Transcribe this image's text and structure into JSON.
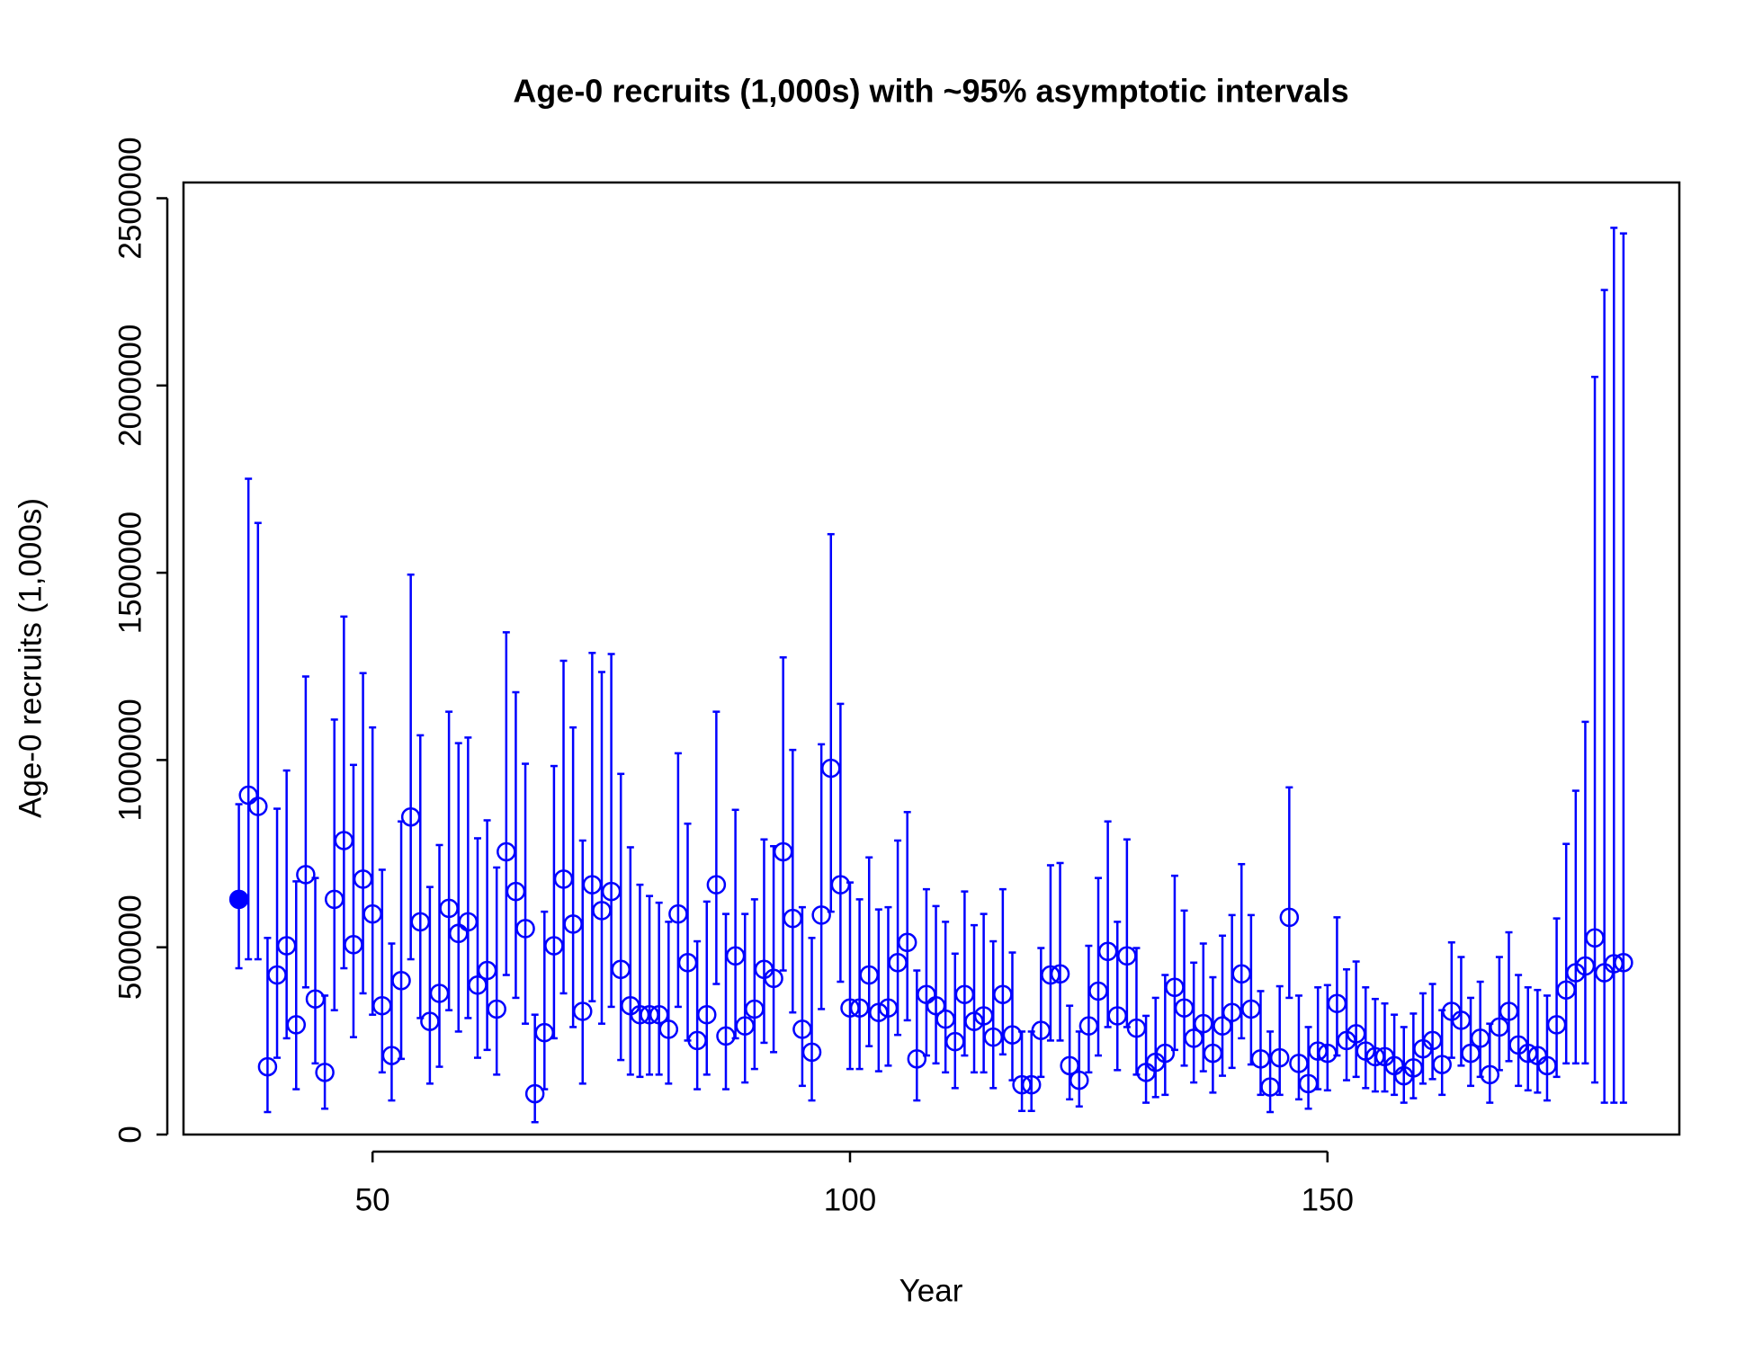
{
  "chart_data": {
    "type": "errorbar",
    "title": "Age-0 recruits (1,000s) with ~95% asymptotic intervals",
    "x_label": "Year",
    "y_label": "Age-0 recruits (1,000s)",
    "x": [
      36,
      37,
      38,
      39,
      40,
      41,
      42,
      43,
      44,
      45,
      46,
      47,
      48,
      49,
      50,
      51,
      52,
      53,
      54,
      55,
      56,
      57,
      58,
      59,
      60,
      61,
      62,
      63,
      64,
      65,
      66,
      67,
      68,
      69,
      70,
      71,
      72,
      73,
      74,
      75,
      76,
      77,
      78,
      79,
      80,
      81,
      82,
      83,
      84,
      85,
      86,
      87,
      88,
      89,
      90,
      91,
      92,
      93,
      94,
      95,
      96,
      97,
      98,
      99,
      100,
      101,
      102,
      103,
      104,
      105,
      106,
      107,
      108,
      109,
      110,
      111,
      112,
      113,
      114,
      115,
      116,
      117,
      118,
      119,
      120,
      121,
      122,
      123,
      124,
      125,
      126,
      127,
      128,
      129,
      130,
      131,
      132,
      133,
      134,
      135,
      136,
      137,
      138,
      139,
      140,
      141,
      142,
      143,
      144,
      145,
      146,
      147,
      148,
      149,
      150,
      151,
      152,
      153,
      154,
      155,
      156,
      157,
      158,
      159,
      160,
      161,
      162,
      163,
      164,
      165,
      166,
      167,
      168,
      169,
      170,
      171,
      172,
      173,
      174,
      175,
      176,
      177,
      178,
      179,
      180,
      181
    ],
    "series": [
      {
        "color": "#0000ff",
        "values": [
          628000,
          906000,
          876000,
          181000,
          426000,
          504000,
          293000,
          694000,
          362000,
          166000,
          628000,
          785000,
          507000,
          682000,
          589000,
          344000,
          211000,
          411000,
          848000,
          568000,
          302000,
          377000,
          604000,
          537000,
          568000,
          399000,
          438000,
          335000,
          755000,
          649000,
          550000,
          109000,
          272000,
          504000,
          682000,
          562000,
          329000,
          667000,
          598000,
          649000,
          441000,
          344000,
          320000,
          320000,
          320000,
          281000,
          589000,
          459000,
          251000,
          320000,
          667000,
          263000,
          477000,
          290000,
          335000,
          441000,
          417000,
          755000,
          577000,
          281000,
          220000,
          586000,
          978000,
          667000,
          338000,
          338000,
          426000,
          326000,
          338000,
          459000,
          513000,
          202000,
          374000,
          344000,
          308000,
          248000,
          374000,
          302000,
          317000,
          260000,
          374000,
          266000,
          133000,
          133000,
          278000,
          426000,
          429000,
          184000,
          145000,
          290000,
          383000,
          489000,
          317000,
          477000,
          284000,
          166000,
          193000,
          217000,
          393000,
          338000,
          257000,
          296000,
          217000,
          290000,
          326000,
          429000,
          335000,
          202000,
          127000,
          205000,
          580000,
          190000,
          136000,
          223000,
          217000,
          350000,
          251000,
          269000,
          223000,
          208000,
          208000,
          184000,
          157000,
          178000,
          229000,
          251000,
          187000,
          329000,
          305000,
          217000,
          257000,
          160000,
          287000,
          329000,
          239000,
          217000,
          211000,
          184000,
          293000,
          386000,
          432000,
          450000,
          525000,
          432000,
          456000,
          459000
        ],
        "upper": [
          882000,
          1751000,
          1633000,
          525000,
          870000,
          972000,
          676000,
          1223000,
          685000,
          371000,
          1108000,
          1383000,
          987000,
          1232000,
          1087000,
          707000,
          510000,
          836000,
          1495000,
          1066000,
          661000,
          773000,
          1129000,
          1045000,
          1060000,
          791000,
          839000,
          713000,
          1341000,
          1181000,
          990000,
          320000,
          595000,
          984000,
          1265000,
          1087000,
          785000,
          1286000,
          1235000,
          1283000,
          963000,
          767000,
          667000,
          637000,
          619000,
          568000,
          1018000,
          830000,
          516000,
          622000,
          1129000,
          589000,
          867000,
          589000,
          628000,
          788000,
          770000,
          1274000,
          1027000,
          607000,
          525000,
          1042000,
          1603000,
          1150000,
          673000,
          628000,
          740000,
          601000,
          607000,
          785000,
          861000,
          438000,
          655000,
          610000,
          568000,
          483000,
          649000,
          559000,
          589000,
          516000,
          655000,
          486000,
          275000,
          275000,
          498000,
          719000,
          725000,
          344000,
          275000,
          504000,
          685000,
          836000,
          568000,
          788000,
          498000,
          317000,
          365000,
          426000,
          691000,
          598000,
          459000,
          510000,
          420000,
          531000,
          586000,
          722000,
          586000,
          383000,
          275000,
          396000,
          927000,
          371000,
          287000,
          393000,
          399000,
          580000,
          441000,
          462000,
          393000,
          362000,
          350000,
          320000,
          287000,
          323000,
          377000,
          402000,
          332000,
          513000,
          474000,
          365000,
          408000,
          296000,
          474000,
          540000,
          426000,
          393000,
          386000,
          371000,
          577000,
          776000,
          918000,
          1102000,
          2023000,
          2255000,
          2421000,
          2406000
        ],
        "lower": [
          444000,
          468000,
          468000,
          60000,
          205000,
          257000,
          121000,
          393000,
          190000,
          69000,
          332000,
          444000,
          260000,
          377000,
          320000,
          166000,
          91000,
          202000,
          468000,
          311000,
          136000,
          181000,
          332000,
          275000,
          311000,
          205000,
          226000,
          160000,
          426000,
          365000,
          296000,
          33000,
          121000,
          257000,
          377000,
          287000,
          136000,
          356000,
          296000,
          341000,
          199000,
          160000,
          154000,
          160000,
          160000,
          136000,
          341000,
          251000,
          121000,
          160000,
          402000,
          121000,
          257000,
          139000,
          175000,
          245000,
          220000,
          438000,
          326000,
          130000,
          91000,
          335000,
          595000,
          408000,
          175000,
          175000,
          236000,
          169000,
          184000,
          266000,
          305000,
          91000,
          211000,
          190000,
          166000,
          124000,
          211000,
          166000,
          166000,
          124000,
          214000,
          145000,
          63000,
          63000,
          154000,
          251000,
          251000,
          94000,
          75000,
          166000,
          211000,
          287000,
          172000,
          287000,
          160000,
          85000,
          100000,
          106000,
          226000,
          184000,
          139000,
          169000,
          112000,
          157000,
          178000,
          257000,
          187000,
          106000,
          60000,
          106000,
          365000,
          94000,
          69000,
          121000,
          118000,
          211000,
          145000,
          154000,
          124000,
          115000,
          115000,
          106000,
          85000,
          97000,
          136000,
          148000,
          106000,
          205000,
          184000,
          130000,
          154000,
          85000,
          172000,
          196000,
          130000,
          118000,
          112000,
          91000,
          154000,
          190000,
          190000,
          190000,
          139000,
          85000,
          85000,
          85000
        ],
        "filled_points": [
          0
        ]
      }
    ],
    "xlim": [
      30.2,
      186.85
    ],
    "xticks": [
      50,
      100,
      150
    ],
    "ylim": [
      0,
      2542000
    ],
    "yticks": [
      0,
      500000,
      1000000,
      1500000,
      2000000,
      2500000
    ]
  }
}
